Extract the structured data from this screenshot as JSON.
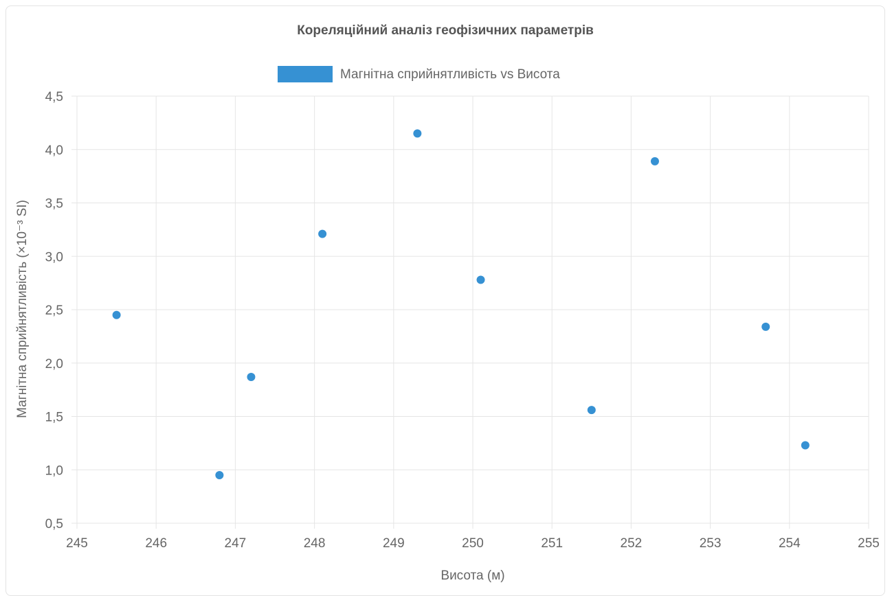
{
  "chart_data": {
    "type": "scatter",
    "title": "Кореляційний аналіз геофізичних параметрів",
    "xlabel": "Висота (м)",
    "ylabel": "Магнітна сприйнятливість (×10⁻³ SI)",
    "xlim": [
      245,
      255
    ],
    "ylim": [
      0.5,
      4.5
    ],
    "x_ticks": [
      "245",
      "246",
      "247",
      "248",
      "249",
      "250",
      "251",
      "252",
      "253",
      "254",
      "255"
    ],
    "y_ticks": [
      "0,5",
      "1,0",
      "1,5",
      "2,0",
      "2,5",
      "3,0",
      "3,5",
      "4,0",
      "4,5"
    ],
    "grid": true,
    "legend_position": "top-center",
    "series": [
      {
        "name": "Магнітна сприйнятливість vs Висота",
        "color": "#3691d3",
        "points": [
          {
            "x": 245.5,
            "y": 2.45
          },
          {
            "x": 246.8,
            "y": 0.95
          },
          {
            "x": 247.2,
            "y": 1.87
          },
          {
            "x": 248.1,
            "y": 3.21
          },
          {
            "x": 249.3,
            "y": 4.15
          },
          {
            "x": 250.1,
            "y": 2.78
          },
          {
            "x": 251.5,
            "y": 1.56
          },
          {
            "x": 252.3,
            "y": 3.89
          },
          {
            "x": 253.7,
            "y": 2.34
          },
          {
            "x": 254.2,
            "y": 1.23
          }
        ]
      }
    ]
  }
}
